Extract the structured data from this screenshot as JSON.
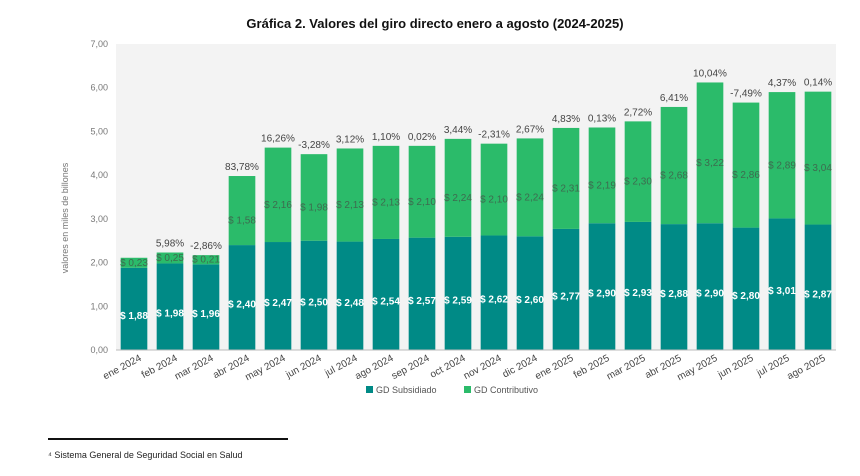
{
  "chart_data": {
    "type": "bar",
    "stacked": true,
    "title": "Gráfica 2. Valores del giro directo enero a agosto (2024-2025)",
    "xlabel": "",
    "ylabel": "valores en miles de billones",
    "ylim": [
      0,
      7
    ],
    "yticks": [
      "0,00",
      "1,00",
      "2,00",
      "3,00",
      "4,00",
      "5,00",
      "6,00",
      "7,00"
    ],
    "categories": [
      "ene 2024",
      "feb 2024",
      "mar 2024",
      "abr 2024",
      "may 2024",
      "jun 2024",
      "jul 2024",
      "ago 2024",
      "sep 2024",
      "oct 2024",
      "nov 2024",
      "dic 2024",
      "ene 2025",
      "feb 2025",
      "mar 2025",
      "abr 2025",
      "may 2025",
      "jun 2025",
      "jul 2025",
      "ago 2025"
    ],
    "series": [
      {
        "name": "GD Subsidiado",
        "color": "#008a86",
        "values": [
          1.88,
          1.98,
          1.96,
          2.4,
          2.47,
          2.5,
          2.48,
          2.54,
          2.57,
          2.59,
          2.62,
          2.6,
          2.77,
          2.9,
          2.93,
          2.88,
          2.9,
          2.8,
          3.01,
          2.87
        ],
        "labels": [
          "$ 1,88",
          "$ 1,98",
          "$ 1,96",
          "$ 2,40",
          "$ 2,47",
          "$ 2,50",
          "$ 2,48",
          "$ 2,54",
          "$ 2,57",
          "$ 2,59",
          "$ 2,62",
          "$ 2,60",
          "$ 2,77",
          "$ 2,90",
          "$ 2,93",
          "$ 2,88",
          "$ 2,90",
          "$ 2,80",
          "$ 3,01",
          "$ 2,87"
        ]
      },
      {
        "name": "GD Contributivo",
        "color": "#2bbb6a",
        "values": [
          0.23,
          0.25,
          0.21,
          1.58,
          2.16,
          1.98,
          2.13,
          2.13,
          2.1,
          2.24,
          2.1,
          2.24,
          2.31,
          2.19,
          2.3,
          2.68,
          3.22,
          2.86,
          2.89,
          3.04
        ],
        "labels": [
          "$ 0,23",
          "$ 0,25",
          "$ 0,21",
          "$ 1,58",
          "$ 2,16",
          "$ 1,98",
          "$ 2,13",
          "$ 2,13",
          "$ 2,10",
          "$ 2,24",
          "$ 2,10",
          "$ 2,24",
          "$ 2,31",
          "$ 2,19",
          "$ 2,30",
          "$ 2,68",
          "$ 3,22",
          "$ 2,86",
          "$ 2,89",
          "$ 3,04"
        ]
      }
    ],
    "growth_labels": [
      "",
      "5,98%",
      "-2,86%",
      "83,78%",
      "16,26%",
      "-3,28%",
      "3,12%",
      "1,10%",
      "0,02%",
      "3,44%",
      "-2,31%",
      "2,67%",
      "4,83%",
      "0,13%",
      "2,72%",
      "6,41%",
      "10,04%",
      "-7,49%",
      "4,37%",
      "0,14%"
    ],
    "legend_position": "bottom"
  },
  "footnote": "⁴ Sistema General de Seguridad Social en Salud"
}
